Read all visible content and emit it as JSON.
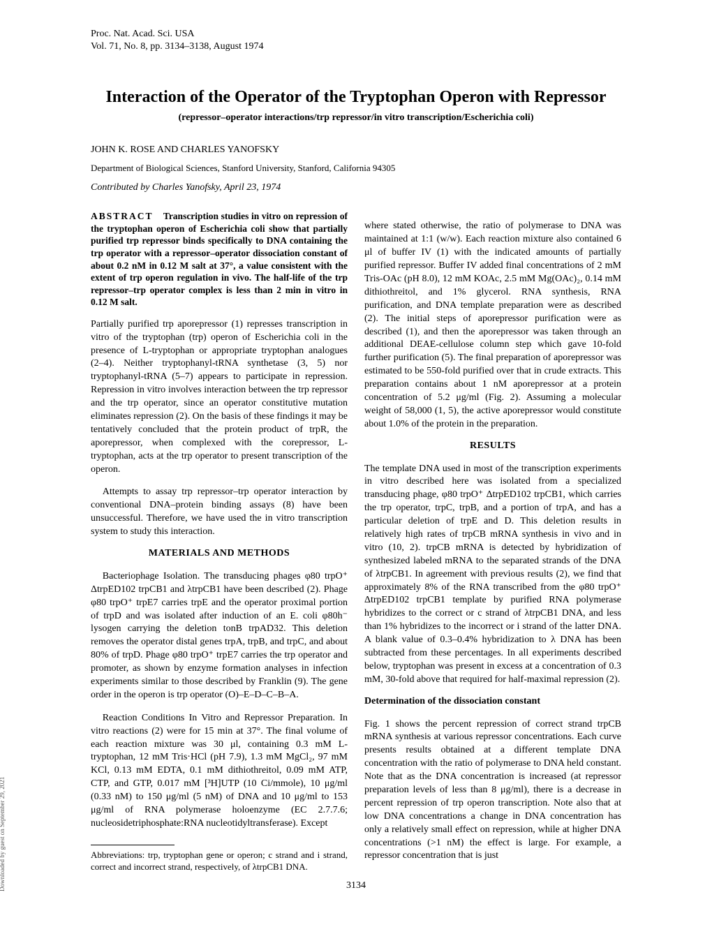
{
  "journal": {
    "line1": "Proc. Nat. Acad. Sci. USA",
    "line2": "Vol. 71, No. 8, pp. 3134–3138, August 1974"
  },
  "title": "Interaction of the Operator of the Tryptophan Operon with Repressor",
  "subtitle": "(repressor–operator interactions/trp repressor/in vitro transcription/Escherichia coli)",
  "authors": "JOHN K. ROSE AND CHARLES YANOFSKY",
  "affiliation": "Department of Biological Sciences, Stanford University, Stanford, California 94305",
  "contributed": "Contributed by Charles Yanofsky, April 23, 1974",
  "abstract": {
    "label": "ABSTRACT",
    "text": "Transcription studies in vitro on repression of the tryptophan operon of Escherichia coli show that partially purified trp repressor binds specifically to DNA containing the trp operator with a repressor–operator dissociation constant of about 0.2 nM in 0.12 M salt at 37°, a value consistent with the extent of trp operon regulation in vivo. The half-life of the trp repressor–trp operator complex is less than 2 min in vitro in 0.12 M salt."
  },
  "left_col": {
    "p1": "Partially purified trp aporepressor (1) represses transcription in vitro of the tryptophan (trp) operon of Escherichia coli in the presence of L-tryptophan or appropriate tryptophan analogues (2–4). Neither tryptophanyl-tRNA synthetase (3, 5) nor tryptophanyl-tRNA (5–7) appears to participate in repression. Repression in vitro involves interaction between the trp repressor and the trp operator, since an operator constitutive mutation eliminates repression (2). On the basis of these findings it may be tentatively concluded that the protein product of trpR, the aporepressor, when complexed with the corepressor, L-tryptophan, acts at the trp operator to present transcription of the operon.",
    "p2": "Attempts to assay trp repressor–trp operator interaction by conventional DNA–protein binding assays (8) have been unsuccessful. Therefore, we have used the in vitro transcription system to study this interaction.",
    "h1": "MATERIALS AND METHODS",
    "p3": "Bacteriophage Isolation. The transducing phages φ80 trpO⁺ ΔtrpED102 trpCB1 and λtrpCB1 have been described (2). Phage φ80 trpO⁺ trpE7 carries trpE and the operator proximal portion of trpD and was isolated after induction of an E. coli φ80h⁻ lysogen carrying the deletion tonB trpAD32. This deletion removes the operator distal genes trpA, trpB, and trpC, and about 80% of trpD. Phage φ80 trpO⁺ trpE7 carries the trp operator and promoter, as shown by enzyme formation analyses in infection experiments similar to those described by Franklin (9). The gene order in the operon is trp operator (O)–E–D–C–B–A.",
    "p4": "Reaction Conditions In Vitro and Repressor Preparation. In vitro reactions (2) were for 15 min at 37°. The final volume of each reaction mixture was 30 μl, containing 0.3 mM L-tryptophan, 12 mM Tris·HCl (pH 7.9), 1.3 mM MgCl₂, 97 mM KCl, 0.13 mM EDTA, 0.1 mM dithiothreitol, 0.09 mM ATP, CTP, and GTP, 0.017 mM [³H]UTP (10 Ci/mmole), 10 μg/ml (0.33 nM) to 150 μg/ml (5 nM) of DNA and 10 μg/ml to 153 μg/ml of RNA polymerase holoenzyme (EC 2.7.7.6; nucleosidetriphosphate:RNA nucleotidyltransferase). Except",
    "footnote": "Abbreviations: trp, tryptophan gene or operon; c strand and i strand, correct and incorrect strand, respectively, of λtrpCB1 DNA."
  },
  "right_col": {
    "p1": "where stated otherwise, the ratio of polymerase to DNA was maintained at 1:1 (w/w). Each reaction mixture also contained 6 μl of buffer IV (1) with the indicated amounts of partially purified repressor. Buffer IV added final concentrations of 2 mM Tris-OAc (pH 8.0), 12 mM KOAc, 2.5 mM Mg(OAc)₂, 0.14 mM dithiothreitol, and 1% glycerol. RNA synthesis, RNA purification, and DNA template preparation were as described (2). The initial steps of aporepressor purification were as described (1), and then the aporepressor was taken through an additional DEAE-cellulose column step which gave 10-fold further purification (5). The final preparation of aporepressor was estimated to be 550-fold purified over that in crude extracts. This preparation contains about 1 nM aporepressor at a protein concentration of 5.2 μg/ml (Fig. 2). Assuming a molecular weight of 58,000 (1, 5), the active aporepressor would constitute about 1.0% of the protein in the preparation.",
    "h1": "RESULTS",
    "p2": "The template DNA used in most of the transcription experiments in vitro described here was isolated from a specialized transducing phage, φ80 trpO⁺ ΔtrpED102 trpCB1, which carries the trp operator, trpC, trpB, and a portion of trpA, and has a particular deletion of trpE and D. This deletion results in relatively high rates of trpCB mRNA synthesis in vivo and in vitro (10, 2). trpCB mRNA is detected by hybridization of synthesized labeled mRNA to the separated strands of the DNA of λtrpCB1. In agreement with previous results (2), we find that approximately 8% of the RNA transcribed from the φ80 trpO⁺ ΔtrpED102 trpCB1 template by purified RNA polymerase hybridizes to the correct or c strand of λtrpCB1 DNA, and less than 1% hybridizes to the incorrect or i strand of the latter DNA. A blank value of 0.3–0.4% hybridization to λ DNA has been subtracted from these percentages. In all experiments described below, tryptophan was present in excess at a concentration of 0.3 mM, 30-fold above that required for half-maximal repression (2).",
    "h2": "Determination of the dissociation constant",
    "p3": "Fig. 1 shows the percent repression of correct strand trpCB mRNA synthesis at various repressor concentrations. Each curve presents results obtained at a different template DNA concentration with the ratio of polymerase to DNA held constant. Note that as the DNA concentration is increased (at repressor preparation levels of less than 8 μg/ml), there is a decrease in percent repression of trp operon transcription. Note also that at low DNA concentrations a change in DNA concentration has only a relatively small effect on repression, while at higher DNA concentrations (>1 nM) the effect is large. For example, a repressor concentration that is just"
  },
  "page_number": "3134",
  "side_text": "Downloaded by guest on September 29, 2021"
}
